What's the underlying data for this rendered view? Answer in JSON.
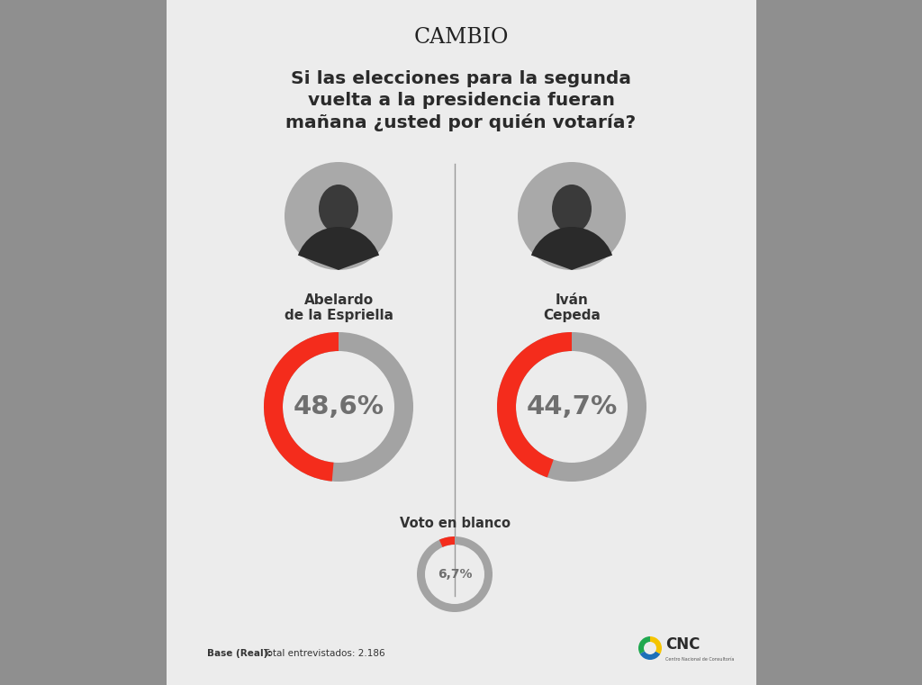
{
  "header": {
    "brand": "CAMBIO",
    "question": "Si las elecciones para la segunda\nvuelta a la presidencia fueran\nmañana ¿usted por quién votaría?"
  },
  "chart_data": [
    {
      "type": "donut",
      "title": "Abelardo\nde la Espriella",
      "values": [
        48.6
      ],
      "value_labels": [
        "48,6%"
      ],
      "ylim": [
        0,
        100
      ],
      "color": "#f42c1c",
      "data_labels": true
    },
    {
      "type": "donut",
      "title": "Iván\nCepeda",
      "values": [
        44.7
      ],
      "value_labels": [
        "44,7%"
      ],
      "ylim": [
        0,
        100
      ],
      "color": "#f42c1c",
      "data_labels": true
    },
    {
      "type": "donut",
      "title": "Voto en blanco",
      "values": [
        6.7
      ],
      "value_labels": [
        "6,7%"
      ],
      "ylim": [
        0,
        100
      ],
      "color": "#f42c1c",
      "data_labels": true
    }
  ],
  "footer": {
    "base_label": "Base (Real):",
    "base_text": "Total entrevistados: 2.186",
    "logo": "CNC",
    "logo_subtitle": "Centro Nacional de Consultoría"
  }
}
